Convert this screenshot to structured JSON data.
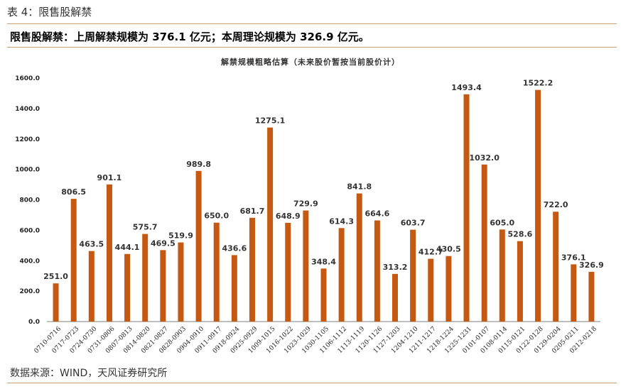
{
  "header": {
    "caption": "表 4：限售股解禁",
    "headline": "限售股解禁：上周解禁规模为 376.1 亿元；本周理论规模为 326.9 亿元。"
  },
  "footer": {
    "source": "数据来源：WIND，天风证券研究所"
  },
  "colors": {
    "bar": "#C65911",
    "axis": "#7f7f7f",
    "rule": "#c8a07a"
  },
  "chart_data": {
    "type": "bar",
    "title": "解禁规模粗略估算（未来股价暂按当前股价计）",
    "xlabel": "",
    "ylabel": "",
    "ylim": [
      0,
      1600
    ],
    "ytick_step": 200,
    "grid": false,
    "legend": "none",
    "categories": [
      "0710-0716",
      "0717-0723",
      "0724-0730",
      "0731-0806",
      "0807-0813",
      "0814-0820",
      "0821-0827",
      "0828-0903",
      "0904-0910",
      "0911-0917",
      "0918-0924",
      "0925-0929",
      "1009-1015",
      "1016-1022",
      "1023-1029",
      "1030-1105",
      "1106-1112",
      "1113-1119",
      "1120-1126",
      "1127-1203",
      "1204-1210",
      "1211-1217",
      "1218-1224",
      "1225-1231",
      "0101-0107",
      "0108-0114",
      "0115-0121",
      "0122-0128",
      "0129-0204",
      "0205-0211",
      "0212-0218"
    ],
    "values": [
      251.0,
      806.5,
      463.5,
      901.1,
      444.1,
      575.7,
      469.5,
      519.9,
      989.8,
      650.0,
      436.6,
      681.7,
      1275.1,
      648.9,
      729.9,
      348.4,
      614.3,
      841.8,
      664.6,
      313.2,
      603.7,
      412.7,
      430.5,
      1493.4,
      1032.0,
      605.0,
      528.6,
      1522.2,
      722.0,
      376.1,
      326.9
    ]
  }
}
